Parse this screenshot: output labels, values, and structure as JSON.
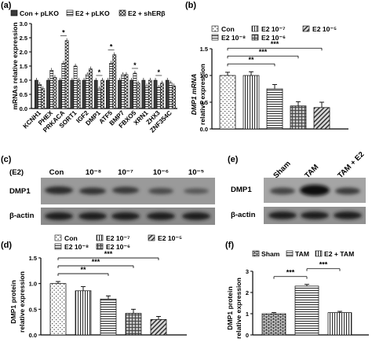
{
  "panels": {
    "a": {
      "label": "(a)",
      "legend": [
        "Con + pLKO",
        "E2 + pLKO",
        "E2 + shERβ"
      ],
      "ylabel": "mRNAs relative expression",
      "genes": [
        "KCNH1",
        "PHEX",
        "PRKACA",
        "SORT1",
        "IGF2",
        "DMP1",
        "ATF5",
        "BMP7",
        "FBXO5",
        "XRN1",
        "ZHX3",
        "ZNF354C"
      ],
      "stars": "*",
      "chart_data": {
        "type": "bar",
        "categories": [
          "KCNH1",
          "PHEX",
          "PRKACA",
          "SORT1",
          "IGF2",
          "DMP1",
          "ATF5",
          "BMP7",
          "FBXO5",
          "XRN1",
          "ZHX3",
          "ZNF354C"
        ],
        "series": [
          {
            "name": "Con + pLKO",
            "values": [
              1,
              1,
              1,
              1,
              1,
              1,
              1,
              1,
              1,
              1,
              1,
              1
            ]
          },
          {
            "name": "E2 + pLKO",
            "values": [
              0.85,
              1.35,
              1.6,
              1.5,
              1.2,
              0.7,
              1.6,
              1.2,
              1.25,
              0.8,
              0.75,
              0.9
            ]
          },
          {
            "name": "E2 + shERβ",
            "values": [
              0.7,
              1.1,
              2.4,
              1.0,
              1.4,
              1.0,
              1.9,
              1.2,
              0.9,
              1.0,
              0.9,
              0.8
            ]
          }
        ],
        "ylim": [
          0,
          3
        ],
        "yticks": [
          "0.0",
          "0.5",
          "1.0",
          "1.5",
          "2.0",
          "2.5",
          "3.0"
        ],
        "sig_marks": [
          {
            "category": "PRKACA",
            "text": "*"
          },
          {
            "category": "DMP1",
            "text": "*"
          },
          {
            "category": "ATF5",
            "text": "*"
          },
          {
            "category": "FBXO5",
            "text": "*"
          },
          {
            "category": "ZHX3",
            "text": "*"
          }
        ]
      }
    },
    "b": {
      "label": "(b)",
      "legend": [
        "Con",
        "E2 10⁻⁷",
        "E2 10⁻⁵",
        "E2 10⁻⁸",
        "E2 10⁻⁶"
      ],
      "ylabel_1": "DMP1 mRNA",
      "ylabel_2": "relative expression",
      "chart_data": {
        "type": "bar",
        "categories": [
          "Con",
          "E2 10⁻⁸",
          "E2 10⁻⁷",
          "E2 10⁻⁶",
          "E2 10⁻⁵"
        ],
        "values": [
          1.0,
          1.0,
          0.75,
          0.43,
          0.4
        ],
        "errors": [
          0.06,
          0.07,
          0.08,
          0.08,
          0.1
        ],
        "ylim": [
          0,
          1.5
        ],
        "yticks": [
          "0.0",
          "0.5",
          "1.0",
          "1.5"
        ],
        "sig": [
          {
            "from": 0,
            "to": 2,
            "text": "**"
          },
          {
            "from": 0,
            "to": 3,
            "text": "***"
          },
          {
            "from": 0,
            "to": 4,
            "text": "***"
          }
        ]
      }
    },
    "c": {
      "label": "(c)",
      "header_prefix": "(E2)",
      "lanes": [
        "Con",
        "10⁻⁸",
        "10⁻⁷",
        "10⁻⁶",
        "10⁻⁵"
      ],
      "rows": [
        "DMP1",
        "β-actin"
      ]
    },
    "d": {
      "label": "(d)",
      "legend": [
        "Con",
        "E2 10⁻⁷",
        "E2 10⁻⁵",
        "E2 10⁻⁸",
        "E2 10⁻⁶"
      ],
      "ylabel_1": "DMP1 protein",
      "ylabel_2": "relative expression",
      "chart_data": {
        "type": "bar",
        "categories": [
          "Con",
          "E2 10⁻⁸",
          "E2 10⁻⁷",
          "E2 10⁻⁶",
          "E2 10⁻⁵"
        ],
        "values": [
          1.0,
          0.86,
          0.7,
          0.42,
          0.3
        ],
        "errors": [
          0.04,
          0.08,
          0.06,
          0.08,
          0.06
        ],
        "ylim": [
          0,
          1.5
        ],
        "yticks": [
          "0.0",
          "0.5",
          "1.0",
          "1.5"
        ],
        "sig": [
          {
            "from": 0,
            "to": 2,
            "text": "**"
          },
          {
            "from": 0,
            "to": 3,
            "text": "***"
          },
          {
            "from": 0,
            "to": 4,
            "text": "***"
          }
        ]
      }
    },
    "e": {
      "label": "(e)",
      "lanes": [
        "Sham",
        "TAM",
        "TAM + E2"
      ],
      "rows": [
        "DMP1",
        "β-actin"
      ]
    },
    "f": {
      "label": "(f)",
      "legend": [
        "Sham",
        "TAM",
        "E2 + TAM"
      ],
      "ylabel_1": "DMP1 protein",
      "ylabel_2": "relative expression",
      "chart_data": {
        "type": "bar",
        "categories": [
          "Sham",
          "TAM",
          "E2 + TAM"
        ],
        "values": [
          1.0,
          2.3,
          1.05
        ],
        "errors": [
          0.05,
          0.08,
          0.06
        ],
        "ylim": [
          0,
          3
        ],
        "yticks": [
          "0",
          "1",
          "2",
          "3"
        ],
        "sig": [
          {
            "from": 0,
            "to": 1,
            "text": "***"
          },
          {
            "from": 1,
            "to": 2,
            "text": "***"
          }
        ]
      }
    }
  }
}
